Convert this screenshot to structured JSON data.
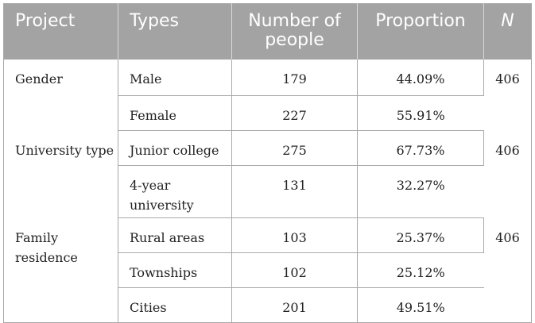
{
  "table": {
    "headers": {
      "project": "Project",
      "types": "Types",
      "number": "Number of people",
      "proportion": "Proportion",
      "n": "N"
    },
    "groups": [
      {
        "project": "Gender",
        "n": "406",
        "rows": [
          {
            "type": "Male",
            "number": "179",
            "proportion": "44.09%"
          },
          {
            "type": "Female",
            "number": "227",
            "proportion": "55.91%"
          }
        ]
      },
      {
        "project": "University type",
        "n": "406",
        "rows": [
          {
            "type": "Junior college",
            "number": "275",
            "proportion": "67.73%"
          },
          {
            "type": "4-year university",
            "number": "131",
            "proportion": "32.27%"
          }
        ]
      },
      {
        "project": "Family residence",
        "n": "406",
        "rows": [
          {
            "type": "Rural areas",
            "number": "103",
            "proportion": "25.37%"
          },
          {
            "type": "Townships",
            "number": "102",
            "proportion": "25.12%"
          },
          {
            "type": "Cities",
            "number": "201",
            "proportion": "49.51%"
          }
        ]
      }
    ]
  }
}
